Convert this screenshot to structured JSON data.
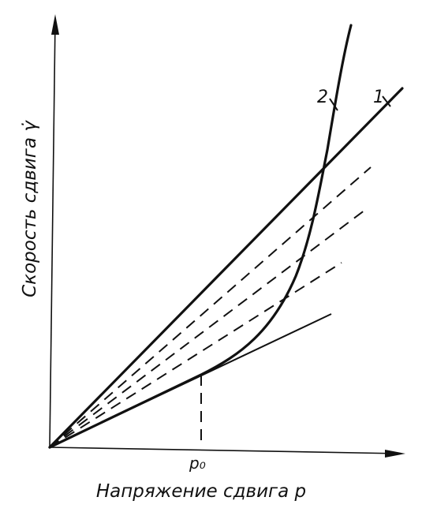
{
  "axes": {
    "y_label": "Скорость сдвига γ̇",
    "x_label": "Напряжение сдвига p",
    "x_marker": "p₀"
  },
  "curves": [
    {
      "label": "1"
    },
    {
      "label": "2"
    }
  ]
}
